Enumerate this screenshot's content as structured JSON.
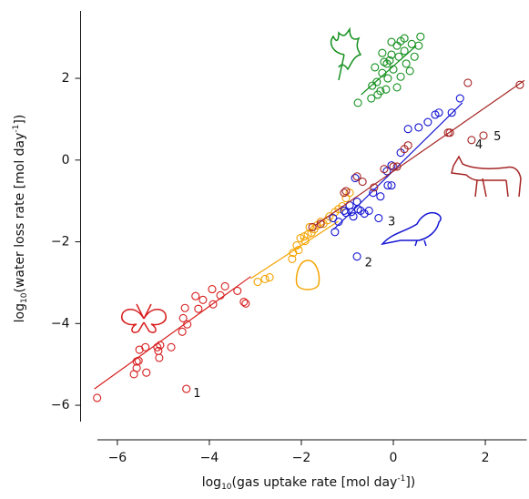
{
  "chart_data": {
    "type": "scatter",
    "xlabel": {
      "pre": "log",
      "sub": "10",
      "mid": "(gas uptake rate [mol day",
      "sup": "-1",
      "post": "])"
    },
    "ylabel": {
      "pre": "log",
      "sub": "10",
      "mid": "(water loss rate [mol day",
      "sup": "-1",
      "post": "])"
    },
    "xlim": [
      -6.8,
      2.9
    ],
    "ylim": [
      -6.4,
      3.65
    ],
    "xticks": [
      {
        "value": -6,
        "label": "−6"
      },
      {
        "value": -4,
        "label": "−4"
      },
      {
        "value": -2,
        "label": "−2"
      },
      0,
      2
    ],
    "yticks": [
      {
        "value": -6,
        "label": "−6"
      },
      {
        "value": -4,
        "label": "−4"
      },
      {
        "value": -2,
        "label": "−2"
      },
      0,
      2
    ],
    "series": [
      {
        "color": "#d81e1e",
        "x": [
          -6.44,
          -4.5,
          -5.64,
          -5.58,
          -5.54,
          -5.58,
          -5.52,
          -5.37,
          -5.09,
          -5.11,
          -5.13,
          -5.07,
          -5.39,
          -4.83,
          -4.59,
          -4.48,
          -4.57,
          -4.24,
          -4.53,
          -3.92,
          -4.14,
          -4.3,
          -3.94,
          -3.76,
          -3.66,
          -3.39,
          -3.21,
          -3.25
        ],
        "values": [
          -5.82,
          -5.6,
          -5.24,
          -5.09,
          -4.91,
          -4.93,
          -4.64,
          -5.2,
          -4.84,
          -4.67,
          -4.58,
          -4.53,
          -4.58,
          -4.58,
          -4.2,
          -4.02,
          -3.87,
          -3.64,
          -3.62,
          -3.53,
          -3.42,
          -3.33,
          -3.16,
          -3.31,
          -3.09,
          -3.2,
          -3.51,
          -3.47
        ],
        "fit_x": [
          -6.5,
          -3.1
        ],
        "fit_y": [
          -5.6,
          -2.85
        ]
      },
      {
        "color": "#f5a300",
        "x": [
          -2.79,
          -2.69,
          -2.95,
          -2.2,
          -2.18,
          -2.1,
          -2.02,
          -1.94,
          -1.86,
          -1.78,
          -1.72,
          -1.82,
          -1.66,
          -1.52,
          -1.43,
          -1.39,
          -1.27,
          -1.19,
          -1.11,
          -1.03,
          -0.95,
          -1.92,
          -2.06,
          -1.58
        ],
        "values": [
          -2.91,
          -2.87,
          -2.98,
          -2.42,
          -2.27,
          -2.09,
          -1.91,
          -1.87,
          -1.82,
          -1.78,
          -1.69,
          -1.64,
          -1.6,
          -1.56,
          -1.47,
          -1.38,
          -1.27,
          -1.2,
          -1.13,
          -0.93,
          -0.8,
          -1.98,
          -2.2,
          -1.51
        ],
        "fit_x": [
          -3.1,
          -1.2
        ],
        "fit_y": [
          -2.9,
          -1.5
        ]
      },
      {
        "color": "#1414d2",
        "x": [
          -0.79,
          -0.87,
          -0.32,
          -0.53,
          -0.77,
          -1.03,
          -1.07,
          -1.19,
          -1.27,
          -1.31,
          -0.95,
          -0.83,
          -0.79,
          -0.71,
          -0.44,
          -0.28,
          -0.12,
          -0.04,
          -0.14,
          0.32,
          0.55,
          0.75,
          0.91,
          0.99,
          1.27,
          1.45,
          0.16,
          -0.04,
          -0.63,
          -0.91
        ],
        "values": [
          -2.36,
          -1.38,
          -1.42,
          -1.24,
          -1.2,
          -1.29,
          -1.24,
          -1.51,
          -1.76,
          -1.42,
          -1.11,
          -0.44,
          -1.02,
          -1.24,
          -0.8,
          -0.89,
          -0.62,
          -0.62,
          -0.27,
          0.76,
          0.8,
          0.93,
          1.11,
          1.16,
          1.16,
          1.51,
          0.18,
          -0.13,
          -1.31,
          -1.27
        ],
        "fit_x": [
          -1.3,
          1.5
        ],
        "fit_y": [
          -1.7,
          1.4
        ]
      },
      {
        "color": "#14901e",
        "x": [
          -0.77,
          -0.46,
          -0.36,
          -0.24,
          -0.14,
          -0.04,
          0.08,
          0.16,
          0.59,
          0.4,
          0.24,
          -0.04,
          -0.24,
          -0.4,
          -0.34,
          -0.48,
          0.16,
          0.28,
          -0.12,
          0,
          -0.28,
          0.12,
          0.46,
          0.36,
          -0.16,
          0.08,
          -0.08,
          0.55,
          0.24,
          -0.2
        ],
        "values": [
          1.4,
          1.82,
          1.91,
          2.13,
          2.36,
          2.58,
          2.8,
          2.91,
          3.02,
          2.84,
          2.67,
          2.89,
          2.62,
          2.27,
          1.6,
          1.51,
          2.04,
          2.36,
          2.0,
          2.22,
          1.69,
          2.53,
          2.53,
          2.18,
          1.73,
          1.78,
          2.44,
          2.8,
          2.98,
          2.4
        ],
        "fit_x": [
          -0.7,
          0.5
        ],
        "fit_y": [
          1.6,
          2.8
        ]
      },
      {
        "color": "#a52424",
        "x": [
          2.75,
          1.62,
          1.19,
          1.23,
          1.7,
          1.96,
          0.08,
          -0.2,
          0.32,
          -0.42,
          -1.03,
          -1.07,
          -1.58,
          -1.76,
          -0.79,
          -0.67,
          0,
          0.24
        ],
        "values": [
          1.84,
          1.89,
          0.67,
          0.67,
          0.49,
          0.6,
          -0.16,
          -0.22,
          0.36,
          -0.67,
          -0.76,
          -0.8,
          -1.56,
          -1.64,
          -0.4,
          -0.53,
          -0.16,
          0.27
        ],
        "fit_x": [
          -1.7,
          2.85
        ],
        "fit_y": [
          -1.6,
          1.95
        ]
      }
    ],
    "annotations": [
      {
        "text": "1",
        "x": -4.35,
        "y": -5.72
      },
      {
        "text": "2",
        "x": -0.62,
        "y": -2.52
      },
      {
        "text": "3",
        "x": -0.12,
        "y": -1.52
      },
      {
        "text": "4",
        "x": 1.78,
        "y": 0.36
      },
      {
        "text": "5",
        "x": 2.18,
        "y": 0.56
      }
    ]
  }
}
